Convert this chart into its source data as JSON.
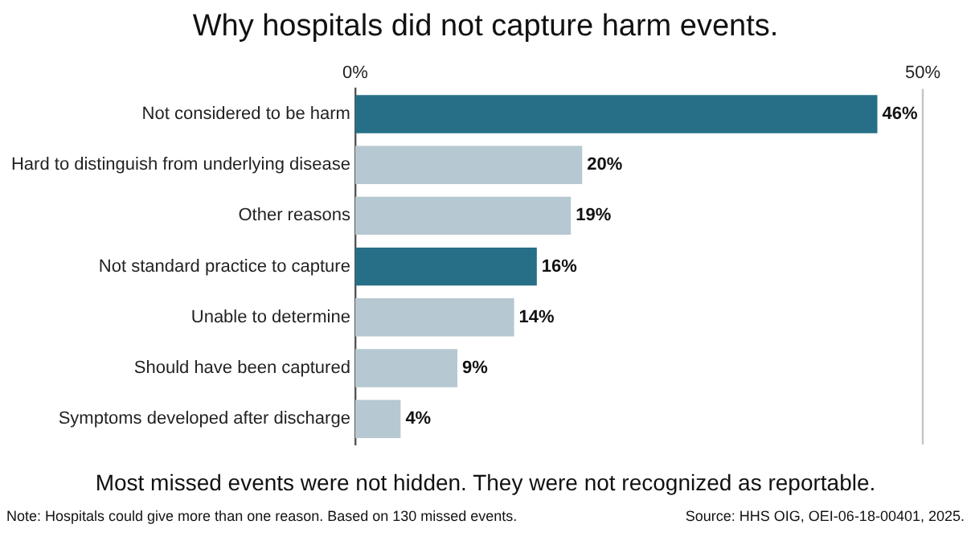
{
  "chart_data": {
    "type": "bar",
    "orientation": "horizontal",
    "title": "Why hospitals did not capture harm events.",
    "subtitle": "Most missed events were not hidden. They were not recognized as reportable.",
    "categories": [
      "Not considered to be harm",
      "Hard to distinguish from underlying disease",
      "Other reasons",
      "Not standard practice to capture",
      "Unable to determine",
      "Should have been captured",
      "Symptoms developed after discharge"
    ],
    "values": [
      46,
      20,
      19,
      16,
      14,
      9,
      4
    ],
    "colors": [
      "#276f87",
      "#b6c8d1",
      "#b6c8d1",
      "#276f87",
      "#b6c8d1",
      "#b6c8d1",
      "#b6c8d1"
    ],
    "value_labels": [
      "46%",
      "20%",
      "19%",
      "16%",
      "14%",
      "9%",
      "4%"
    ],
    "xlim": [
      0,
      50
    ],
    "xticks": [
      {
        "value": 0,
        "label": "0%"
      },
      {
        "value": 50,
        "label": "50%"
      }
    ],
    "annotations": [
      "Note: Hospitals could give more than one reason. Based on 130 missed events.",
      "Source: HHS OIG, OEI-06-18-00401, 2025."
    ]
  }
}
